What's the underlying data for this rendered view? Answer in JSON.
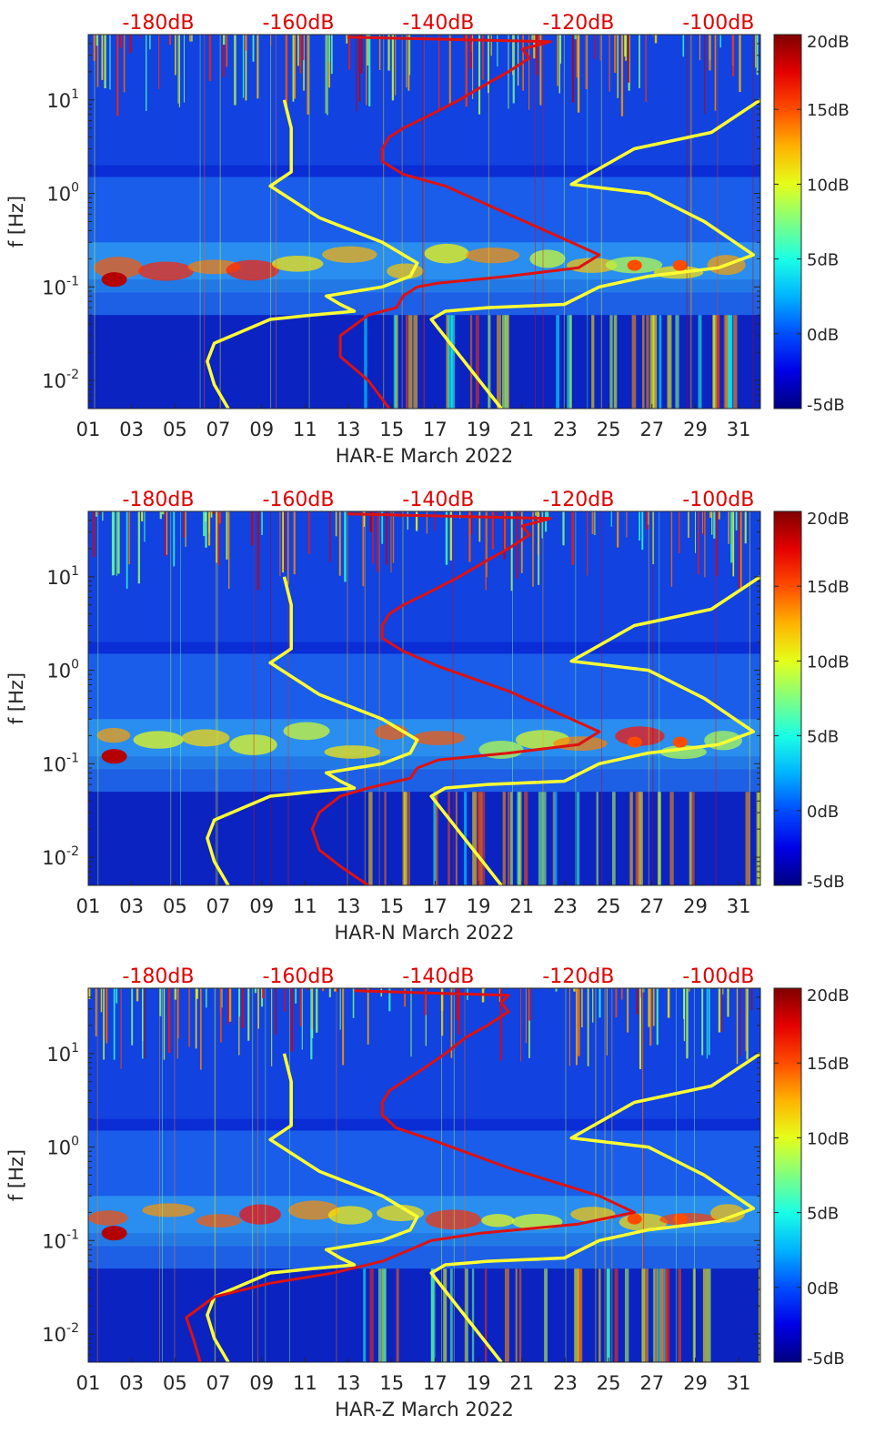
{
  "chart_data": [
    {
      "type": "heatmap",
      "title": "",
      "xlabel": "HAR-E March 2022",
      "ylabel": "f [Hz]",
      "x_range_days": [
        1,
        32
      ],
      "ylim_hz": [
        0.005,
        50
      ],
      "y_scale": "log",
      "x_ticks": [
        "01",
        "03",
        "05",
        "07",
        "09",
        "11",
        "13",
        "15",
        "17",
        "19",
        "21",
        "23",
        "25",
        "27",
        "29",
        "31"
      ],
      "y_ticks": [
        {
          "v": 0.01,
          "base": "10",
          "exp": "-2"
        },
        {
          "v": 0.1,
          "base": "10",
          "exp": "-1"
        },
        {
          "v": 1,
          "base": "10",
          "exp": "0"
        },
        {
          "v": 10,
          "base": "10",
          "exp": "1"
        }
      ],
      "top_axis_labels": [
        "-180dB",
        "-160dB",
        "-140dB",
        "-120dB",
        "-100dB"
      ],
      "top_axis_values_db": [
        -180,
        -160,
        -140,
        -120,
        -100
      ],
      "top_axis_range_db": [
        -190,
        -94
      ],
      "colorbar": {
        "labels": [
          "20dB",
          "15dB",
          "10dB",
          "5dB",
          "0dB",
          "-5dB"
        ],
        "values": [
          20,
          15,
          10,
          5,
          0,
          -5
        ],
        "range": [
          -5,
          20
        ],
        "colormap": "jet"
      },
      "series": [
        {
          "name": "noise-model-left",
          "color": "#ffff33",
          "points": [
            [
              -170,
              0.005
            ],
            [
              -172,
              0.009
            ],
            [
              -173,
              0.016
            ],
            [
              -172,
              0.025
            ],
            [
              -164,
              0.045
            ],
            [
              -158,
              0.05
            ],
            [
              -152,
              0.055
            ],
            [
              -154,
              0.065
            ],
            [
              -156,
              0.08
            ],
            [
              -148,
              0.1
            ],
            [
              -144,
              0.13
            ],
            [
              -143,
              0.18
            ],
            [
              -148,
              0.3
            ],
            [
              -157,
              0.55
            ],
            [
              -164,
              1.2
            ],
            [
              -161,
              1.7
            ],
            [
              -161,
              2.5
            ],
            [
              -161,
              5
            ],
            [
              -162,
              10
            ]
          ]
        },
        {
          "name": "noise-model-right",
          "color": "#ffff33",
          "points": [
            [
              -131,
              0.005
            ],
            [
              -136,
              0.015
            ],
            [
              -141,
              0.045
            ],
            [
              -139,
              0.055
            ],
            [
              -133,
              0.06
            ],
            [
              -122,
              0.065
            ],
            [
              -117,
              0.1
            ],
            [
              -110,
              0.13
            ],
            [
              -100,
              0.16
            ],
            [
              -95,
              0.22
            ],
            [
              -102,
              0.5
            ],
            [
              -110,
              1
            ],
            [
              -121,
              1.25
            ],
            [
              -112,
              3
            ],
            [
              -101,
              4.5
            ],
            [
              -94,
              10
            ]
          ]
        },
        {
          "name": "station-psd",
          "color": "#dd1111",
          "points": [
            [
              -147,
              0.005
            ],
            [
              -150,
              0.01
            ],
            [
              -154,
              0.018
            ],
            [
              -154,
              0.03
            ],
            [
              -150,
              0.05
            ],
            [
              -146,
              0.06
            ],
            [
              -145,
              0.08
            ],
            [
              -143,
              0.1
            ],
            [
              -140,
              0.11
            ],
            [
              -130,
              0.13
            ],
            [
              -120,
              0.16
            ],
            [
              -117,
              0.22
            ],
            [
              -121,
              0.3
            ],
            [
              -130,
              0.6
            ],
            [
              -139,
              1.2
            ],
            [
              -145,
              1.6
            ],
            [
              -148,
              2.2
            ],
            [
              -148,
              3
            ],
            [
              -147,
              4
            ],
            [
              -145,
              5
            ],
            [
              -141,
              7
            ],
            [
              -137,
              10
            ],
            [
              -133,
              15
            ],
            [
              -130,
              20
            ],
            [
              -127,
              28
            ],
            [
              -128,
              35
            ],
            [
              -124,
              42
            ],
            [
              -153,
              47
            ]
          ]
        }
      ]
    },
    {
      "type": "heatmap",
      "title": "",
      "xlabel": "HAR-N March 2022",
      "ylabel": "f [Hz]",
      "x_range_days": [
        1,
        32
      ],
      "ylim_hz": [
        0.005,
        50
      ],
      "y_scale": "log",
      "x_ticks": [
        "01",
        "03",
        "05",
        "07",
        "09",
        "11",
        "13",
        "15",
        "17",
        "19",
        "21",
        "23",
        "25",
        "27",
        "29",
        "31"
      ],
      "y_ticks": [
        {
          "v": 0.01,
          "base": "10",
          "exp": "-2"
        },
        {
          "v": 0.1,
          "base": "10",
          "exp": "-1"
        },
        {
          "v": 1,
          "base": "10",
          "exp": "0"
        },
        {
          "v": 10,
          "base": "10",
          "exp": "1"
        }
      ],
      "top_axis_labels": [
        "-180dB",
        "-160dB",
        "-140dB",
        "-120dB",
        "-100dB"
      ],
      "top_axis_values_db": [
        -180,
        -160,
        -140,
        -120,
        -100
      ],
      "top_axis_range_db": [
        -190,
        -94
      ],
      "colorbar": {
        "labels": [
          "20dB",
          "15dB",
          "10dB",
          "5dB",
          "0dB",
          "-5dB"
        ],
        "values": [
          20,
          15,
          10,
          5,
          0,
          -5
        ],
        "range": [
          -5,
          20
        ],
        "colormap": "jet"
      },
      "series": [
        {
          "name": "noise-model-left",
          "color": "#ffff33",
          "points": [
            [
              -170,
              0.005
            ],
            [
              -172,
              0.009
            ],
            [
              -173,
              0.016
            ],
            [
              -172,
              0.025
            ],
            [
              -164,
              0.045
            ],
            [
              -158,
              0.05
            ],
            [
              -152,
              0.055
            ],
            [
              -154,
              0.065
            ],
            [
              -156,
              0.08
            ],
            [
              -148,
              0.1
            ],
            [
              -144,
              0.13
            ],
            [
              -143,
              0.18
            ],
            [
              -148,
              0.3
            ],
            [
              -157,
              0.55
            ],
            [
              -164,
              1.2
            ],
            [
              -161,
              1.7
            ],
            [
              -161,
              2.5
            ],
            [
              -161,
              5
            ],
            [
              -162,
              10
            ]
          ]
        },
        {
          "name": "noise-model-right",
          "color": "#ffff33",
          "points": [
            [
              -131,
              0.005
            ],
            [
              -136,
              0.015
            ],
            [
              -141,
              0.045
            ],
            [
              -139,
              0.055
            ],
            [
              -133,
              0.06
            ],
            [
              -122,
              0.065
            ],
            [
              -117,
              0.1
            ],
            [
              -110,
              0.13
            ],
            [
              -100,
              0.16
            ],
            [
              -95,
              0.22
            ],
            [
              -102,
              0.5
            ],
            [
              -110,
              1
            ],
            [
              -121,
              1.25
            ],
            [
              -112,
              3
            ],
            [
              -101,
              4.5
            ],
            [
              -94,
              10
            ]
          ]
        },
        {
          "name": "station-psd",
          "color": "#dd1111",
          "points": [
            [
              -150,
              0.005
            ],
            [
              -154,
              0.008
            ],
            [
              -157,
              0.012
            ],
            [
              -158,
              0.02
            ],
            [
              -157,
              0.03
            ],
            [
              -154,
              0.045
            ],
            [
              -150,
              0.055
            ],
            [
              -144,
              0.07
            ],
            [
              -143,
              0.09
            ],
            [
              -140,
              0.11
            ],
            [
              -130,
              0.13
            ],
            [
              -120,
              0.16
            ],
            [
              -117,
              0.22
            ],
            [
              -121,
              0.3
            ],
            [
              -130,
              0.6
            ],
            [
              -140,
              1.1
            ],
            [
              -145,
              1.6
            ],
            [
              -148,
              2.2
            ],
            [
              -148,
              3
            ],
            [
              -147,
              4
            ],
            [
              -145,
              5
            ],
            [
              -141,
              7
            ],
            [
              -137,
              10
            ],
            [
              -133,
              15
            ],
            [
              -130,
              20
            ],
            [
              -127,
              28
            ],
            [
              -128,
              35
            ],
            [
              -124,
              42
            ],
            [
              -153,
              47
            ]
          ]
        }
      ]
    },
    {
      "type": "heatmap",
      "title": "",
      "xlabel": "HAR-Z March 2022",
      "ylabel": "f [Hz]",
      "x_range_days": [
        1,
        32
      ],
      "ylim_hz": [
        0.005,
        50
      ],
      "y_scale": "log",
      "x_ticks": [
        "01",
        "03",
        "05",
        "07",
        "09",
        "11",
        "13",
        "15",
        "17",
        "19",
        "21",
        "23",
        "25",
        "27",
        "29",
        "31"
      ],
      "y_ticks": [
        {
          "v": 0.01,
          "base": "10",
          "exp": "-2"
        },
        {
          "v": 0.1,
          "base": "10",
          "exp": "-1"
        },
        {
          "v": 1,
          "base": "10",
          "exp": "0"
        },
        {
          "v": 10,
          "base": "10",
          "exp": "1"
        }
      ],
      "top_axis_labels": [
        "-180dB",
        "-160dB",
        "-140dB",
        "-120dB",
        "-100dB"
      ],
      "top_axis_values_db": [
        -180,
        -160,
        -140,
        -120,
        -100
      ],
      "top_axis_range_db": [
        -190,
        -94
      ],
      "colorbar": {
        "labels": [
          "20dB",
          "15dB",
          "10dB",
          "5dB",
          "0dB",
          "-5dB"
        ],
        "values": [
          20,
          15,
          10,
          5,
          0,
          -5
        ],
        "range": [
          -5,
          20
        ],
        "colormap": "jet"
      },
      "series": [
        {
          "name": "noise-model-left",
          "color": "#ffff33",
          "points": [
            [
              -170,
              0.005
            ],
            [
              -172,
              0.009
            ],
            [
              -173,
              0.016
            ],
            [
              -172,
              0.025
            ],
            [
              -164,
              0.045
            ],
            [
              -158,
              0.05
            ],
            [
              -152,
              0.055
            ],
            [
              -154,
              0.065
            ],
            [
              -156,
              0.08
            ],
            [
              -148,
              0.1
            ],
            [
              -144,
              0.13
            ],
            [
              -143,
              0.18
            ],
            [
              -148,
              0.3
            ],
            [
              -157,
              0.55
            ],
            [
              -164,
              1.2
            ],
            [
              -161,
              1.7
            ],
            [
              -161,
              2.5
            ],
            [
              -161,
              5
            ],
            [
              -162,
              10
            ]
          ]
        },
        {
          "name": "noise-model-right",
          "color": "#ffff33",
          "points": [
            [
              -131,
              0.005
            ],
            [
              -136,
              0.015
            ],
            [
              -141,
              0.045
            ],
            [
              -139,
              0.055
            ],
            [
              -133,
              0.06
            ],
            [
              -122,
              0.065
            ],
            [
              -117,
              0.1
            ],
            [
              -110,
              0.13
            ],
            [
              -100,
              0.16
            ],
            [
              -95,
              0.22
            ],
            [
              -102,
              0.5
            ],
            [
              -110,
              1
            ],
            [
              -121,
              1.25
            ],
            [
              -112,
              3
            ],
            [
              -101,
              4.5
            ],
            [
              -94,
              10
            ]
          ]
        },
        {
          "name": "station-psd",
          "color": "#dd1111",
          "points": [
            [
              -174,
              0.005
            ],
            [
              -175,
              0.009
            ],
            [
              -176,
              0.015
            ],
            [
              -172,
              0.025
            ],
            [
              -164,
              0.035
            ],
            [
              -155,
              0.045
            ],
            [
              -148,
              0.06
            ],
            [
              -144,
              0.08
            ],
            [
              -141,
              0.1
            ],
            [
              -134,
              0.12
            ],
            [
              -120,
              0.15
            ],
            [
              -112,
              0.2
            ],
            [
              -117,
              0.3
            ],
            [
              -130,
              0.6
            ],
            [
              -141,
              1.2
            ],
            [
              -146,
              1.6
            ],
            [
              -148,
              2.2
            ],
            [
              -148,
              3
            ],
            [
              -147,
              4
            ],
            [
              -145,
              5
            ],
            [
              -142,
              7
            ],
            [
              -139,
              10
            ],
            [
              -136,
              15
            ],
            [
              -133,
              20
            ],
            [
              -130,
              28
            ],
            [
              -131,
              35
            ],
            [
              -130,
              42
            ],
            [
              -152,
              47
            ]
          ]
        }
      ]
    }
  ]
}
